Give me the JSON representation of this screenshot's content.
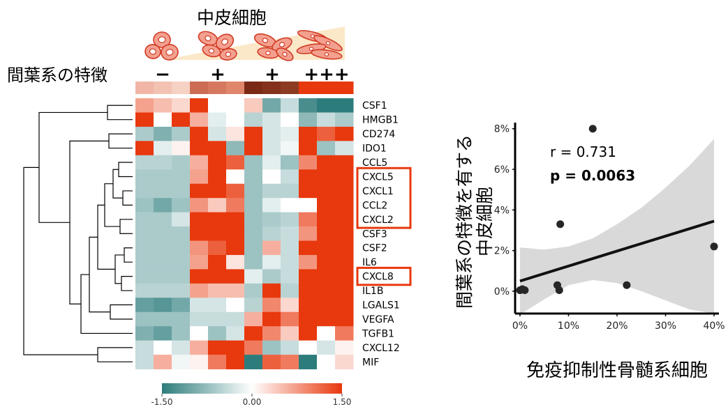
{
  "header": {
    "title": "中皮細胞",
    "row_label": "間葉系の特徴",
    "groups": [
      "−",
      "+",
      "+",
      "+++"
    ]
  },
  "colors": {
    "low": "#2d7c7c",
    "mid": "#ffffff",
    "high": "#e8380d",
    "group_bar": [
      "#f1b6a6",
      "#f3c2b3",
      "#f6d2c4",
      "#cc6c55",
      "#d6785f",
      "#df866b",
      "#7a2a14",
      "#84321b",
      "#8c3a22",
      "#e8380d",
      "#e8380d",
      "#e8380d"
    ],
    "cell_fill": "#f3a08f",
    "cell_stroke": "#d23a24",
    "wedge": "#fbe8c9",
    "highlight_box": "#e8380d",
    "ci_band": "#d9d9d9",
    "point": "#262626",
    "fit_line": "#111111"
  },
  "chart_data": [
    {
      "type": "heatmap",
      "columns": 12,
      "rows": [
        "CSF1",
        "HMGB1",
        "CD274",
        "IDO1",
        "CCL5",
        "CXCL5",
        "CXCL1",
        "CCL2",
        "CXCL2",
        "CSF3",
        "CSF2",
        "IL6",
        "CXCL8",
        "IL1B",
        "LGALS1",
        "VEGFA",
        "TGFB1",
        "CXCL12",
        "MIF"
      ],
      "highlighted_rows": [
        [
          "CXCL5",
          "CXCL1",
          "CCL2",
          "CXCL2"
        ],
        [
          "CXCL8"
        ]
      ],
      "values": [
        [
          0.7,
          0.5,
          0.3,
          1.5,
          0.0,
          0.0,
          0.4,
          -1.0,
          -0.4,
          -1.3,
          -1.5,
          -1.5
        ],
        [
          1.5,
          0.0,
          1.5,
          0.6,
          -0.2,
          0.0,
          -0.5,
          -0.3,
          0.0,
          -0.8,
          -0.4,
          -0.6
        ],
        [
          -0.6,
          -0.9,
          -0.6,
          1.5,
          -0.3,
          0.2,
          1.5,
          -0.3,
          -0.2,
          1.5,
          1.2,
          1.5
        ],
        [
          1.5,
          -0.2,
          0.1,
          1.5,
          1.5,
          -0.8,
          1.5,
          -0.3,
          -0.1,
          1.5,
          -0.7,
          -0.3
        ],
        [
          -0.5,
          -0.5,
          -0.6,
          0.6,
          1.5,
          1.2,
          -0.7,
          -0.2,
          -0.7,
          0.9,
          1.5,
          1.5
        ],
        [
          -0.6,
          -0.6,
          -0.6,
          0.7,
          1.5,
          0.0,
          -0.7,
          0.0,
          -0.4,
          1.5,
          1.5,
          1.5
        ],
        [
          -0.6,
          -0.6,
          -0.6,
          1.5,
          1.5,
          1.2,
          -0.7,
          -0.5,
          -0.5,
          1.5,
          1.5,
          1.5
        ],
        [
          -0.7,
          -1.0,
          -0.7,
          0.8,
          0.4,
          1.0,
          -0.7,
          -0.2,
          0.0,
          0.0,
          1.5,
          1.5
        ],
        [
          -0.6,
          -0.6,
          -0.3,
          1.5,
          1.5,
          1.5,
          -0.7,
          -0.6,
          -0.5,
          1.0,
          1.5,
          1.5
        ],
        [
          -0.6,
          -0.6,
          -0.6,
          1.5,
          1.5,
          1.5,
          -0.7,
          -0.5,
          -0.4,
          0.8,
          1.5,
          1.5
        ],
        [
          -0.6,
          -0.6,
          -0.6,
          0.8,
          1.2,
          1.5,
          -0.7,
          0.6,
          -0.4,
          1.5,
          1.5,
          1.5
        ],
        [
          -0.6,
          -0.6,
          -0.6,
          0.7,
          1.5,
          0.2,
          -0.7,
          -0.2,
          -0.4,
          0.8,
          1.5,
          1.5
        ],
        [
          -0.6,
          -0.6,
          -0.6,
          1.5,
          1.5,
          1.5,
          -0.2,
          -0.6,
          -0.4,
          1.5,
          1.5,
          1.5
        ],
        [
          -0.5,
          -0.5,
          -0.5,
          0.7,
          0.5,
          0.5,
          -0.6,
          1.5,
          -0.5,
          1.5,
          1.5,
          1.5
        ],
        [
          -1.1,
          -1.2,
          -1.0,
          -0.3,
          -0.3,
          0.0,
          -0.5,
          0.9,
          0.3,
          1.5,
          1.5,
          1.5
        ],
        [
          -0.7,
          -0.7,
          -0.7,
          -0.4,
          -0.4,
          -0.4,
          0.6,
          1.5,
          1.0,
          1.5,
          1.5,
          1.5
        ],
        [
          -0.9,
          -1.1,
          -0.7,
          0.0,
          -0.7,
          -0.3,
          1.5,
          0.9,
          0.4,
          1.5,
          0.0,
          1.0
        ],
        [
          -0.4,
          0.0,
          -0.3,
          0.6,
          1.5,
          1.5,
          1.0,
          -0.7,
          -0.4,
          0.0,
          -0.3,
          0.1
        ],
        [
          -0.4,
          0.6,
          -0.1,
          0.1,
          1.0,
          1.5,
          -1.5,
          1.2,
          1.0,
          -1.5,
          0.0,
          0.3
        ]
      ],
      "legend": {
        "min": -1.5,
        "mid": 0.0,
        "max": 1.5,
        "tick_labels": [
          "-1.50",
          "0.00",
          "1.50"
        ]
      }
    },
    {
      "type": "scatter",
      "ylabel_lines": [
        "間葉系の特徴を有する",
        "中皮細胞"
      ],
      "xlabel": "免疫抑制性骨髄系細胞",
      "x_ticks": [
        "0%",
        "10%",
        "20%",
        "30%",
        "40%"
      ],
      "y_ticks": [
        "0%",
        "2%",
        "4%",
        "6%",
        "8%"
      ],
      "xlim": [
        -1,
        41
      ],
      "ylim": [
        -1.1,
        8.3
      ],
      "x_tick_values": [
        0,
        10,
        20,
        30,
        40
      ],
      "y_tick_values": [
        0,
        2,
        4,
        6,
        8
      ],
      "points": [
        {
          "x": 0.0,
          "y": 0.05
        },
        {
          "x": 0.5,
          "y": 0.1
        },
        {
          "x": 1.0,
          "y": 0.05
        },
        {
          "x": 7.7,
          "y": 0.3
        },
        {
          "x": 8.1,
          "y": 0.05
        },
        {
          "x": 8.3,
          "y": 3.3
        },
        {
          "x": 15.0,
          "y": 8.0
        },
        {
          "x": 22.0,
          "y": 0.3
        },
        {
          "x": 40.0,
          "y": 2.2
        }
      ],
      "fit": {
        "x0": 0,
        "y0": 0.5,
        "x1": 40,
        "y1": 3.45
      },
      "ci_band": {
        "upper": [
          [
            0,
            2.15
          ],
          [
            5,
            2.05
          ],
          [
            10,
            2.2
          ],
          [
            15,
            2.6
          ],
          [
            20,
            3.3
          ],
          [
            25,
            4.1
          ],
          [
            30,
            5.1
          ],
          [
            35,
            6.2
          ],
          [
            40,
            7.5
          ]
        ],
        "lower": [
          [
            0,
            -1.15
          ],
          [
            5,
            -0.4
          ],
          [
            10,
            0.3
          ],
          [
            15,
            0.55
          ],
          [
            20,
            0.4
          ],
          [
            25,
            0.0
          ],
          [
            30,
            -0.45
          ],
          [
            35,
            -0.9
          ],
          [
            40,
            -1.1
          ]
        ]
      },
      "annotations": {
        "r": "r = 0.731",
        "p": "p = 0.0063"
      }
    }
  ]
}
